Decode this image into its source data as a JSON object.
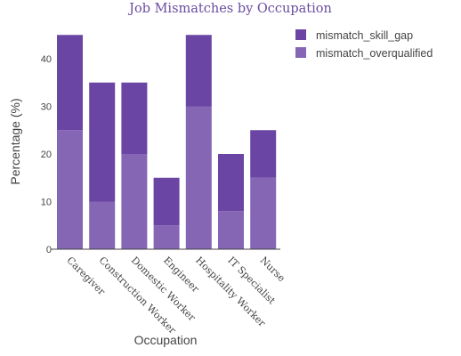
{
  "chart_data": {
    "type": "bar",
    "stacked": true,
    "title": "Job Mismatches by Occupation",
    "xlabel": "Occupation",
    "ylabel": "Percentage (%)",
    "ylim": [
      0,
      45
    ],
    "yticks": [
      0,
      10,
      20,
      30,
      40
    ],
    "grid": false,
    "legend_position": "top-right",
    "categories": [
      "Caregiver",
      "Construction Worker",
      "Domestic Worker",
      "Engineer",
      "Hospitality Worker",
      "IT Specialist",
      "Nurse"
    ],
    "series": [
      {
        "name": "mismatch_overqualified",
        "values": [
          25,
          10,
          20,
          5,
          30,
          8,
          15
        ],
        "color": "#8566b5"
      },
      {
        "name": "mismatch_skill_gap",
        "values": [
          20,
          25,
          15,
          10,
          15,
          12,
          10
        ],
        "color": "#6a45a3"
      }
    ]
  }
}
